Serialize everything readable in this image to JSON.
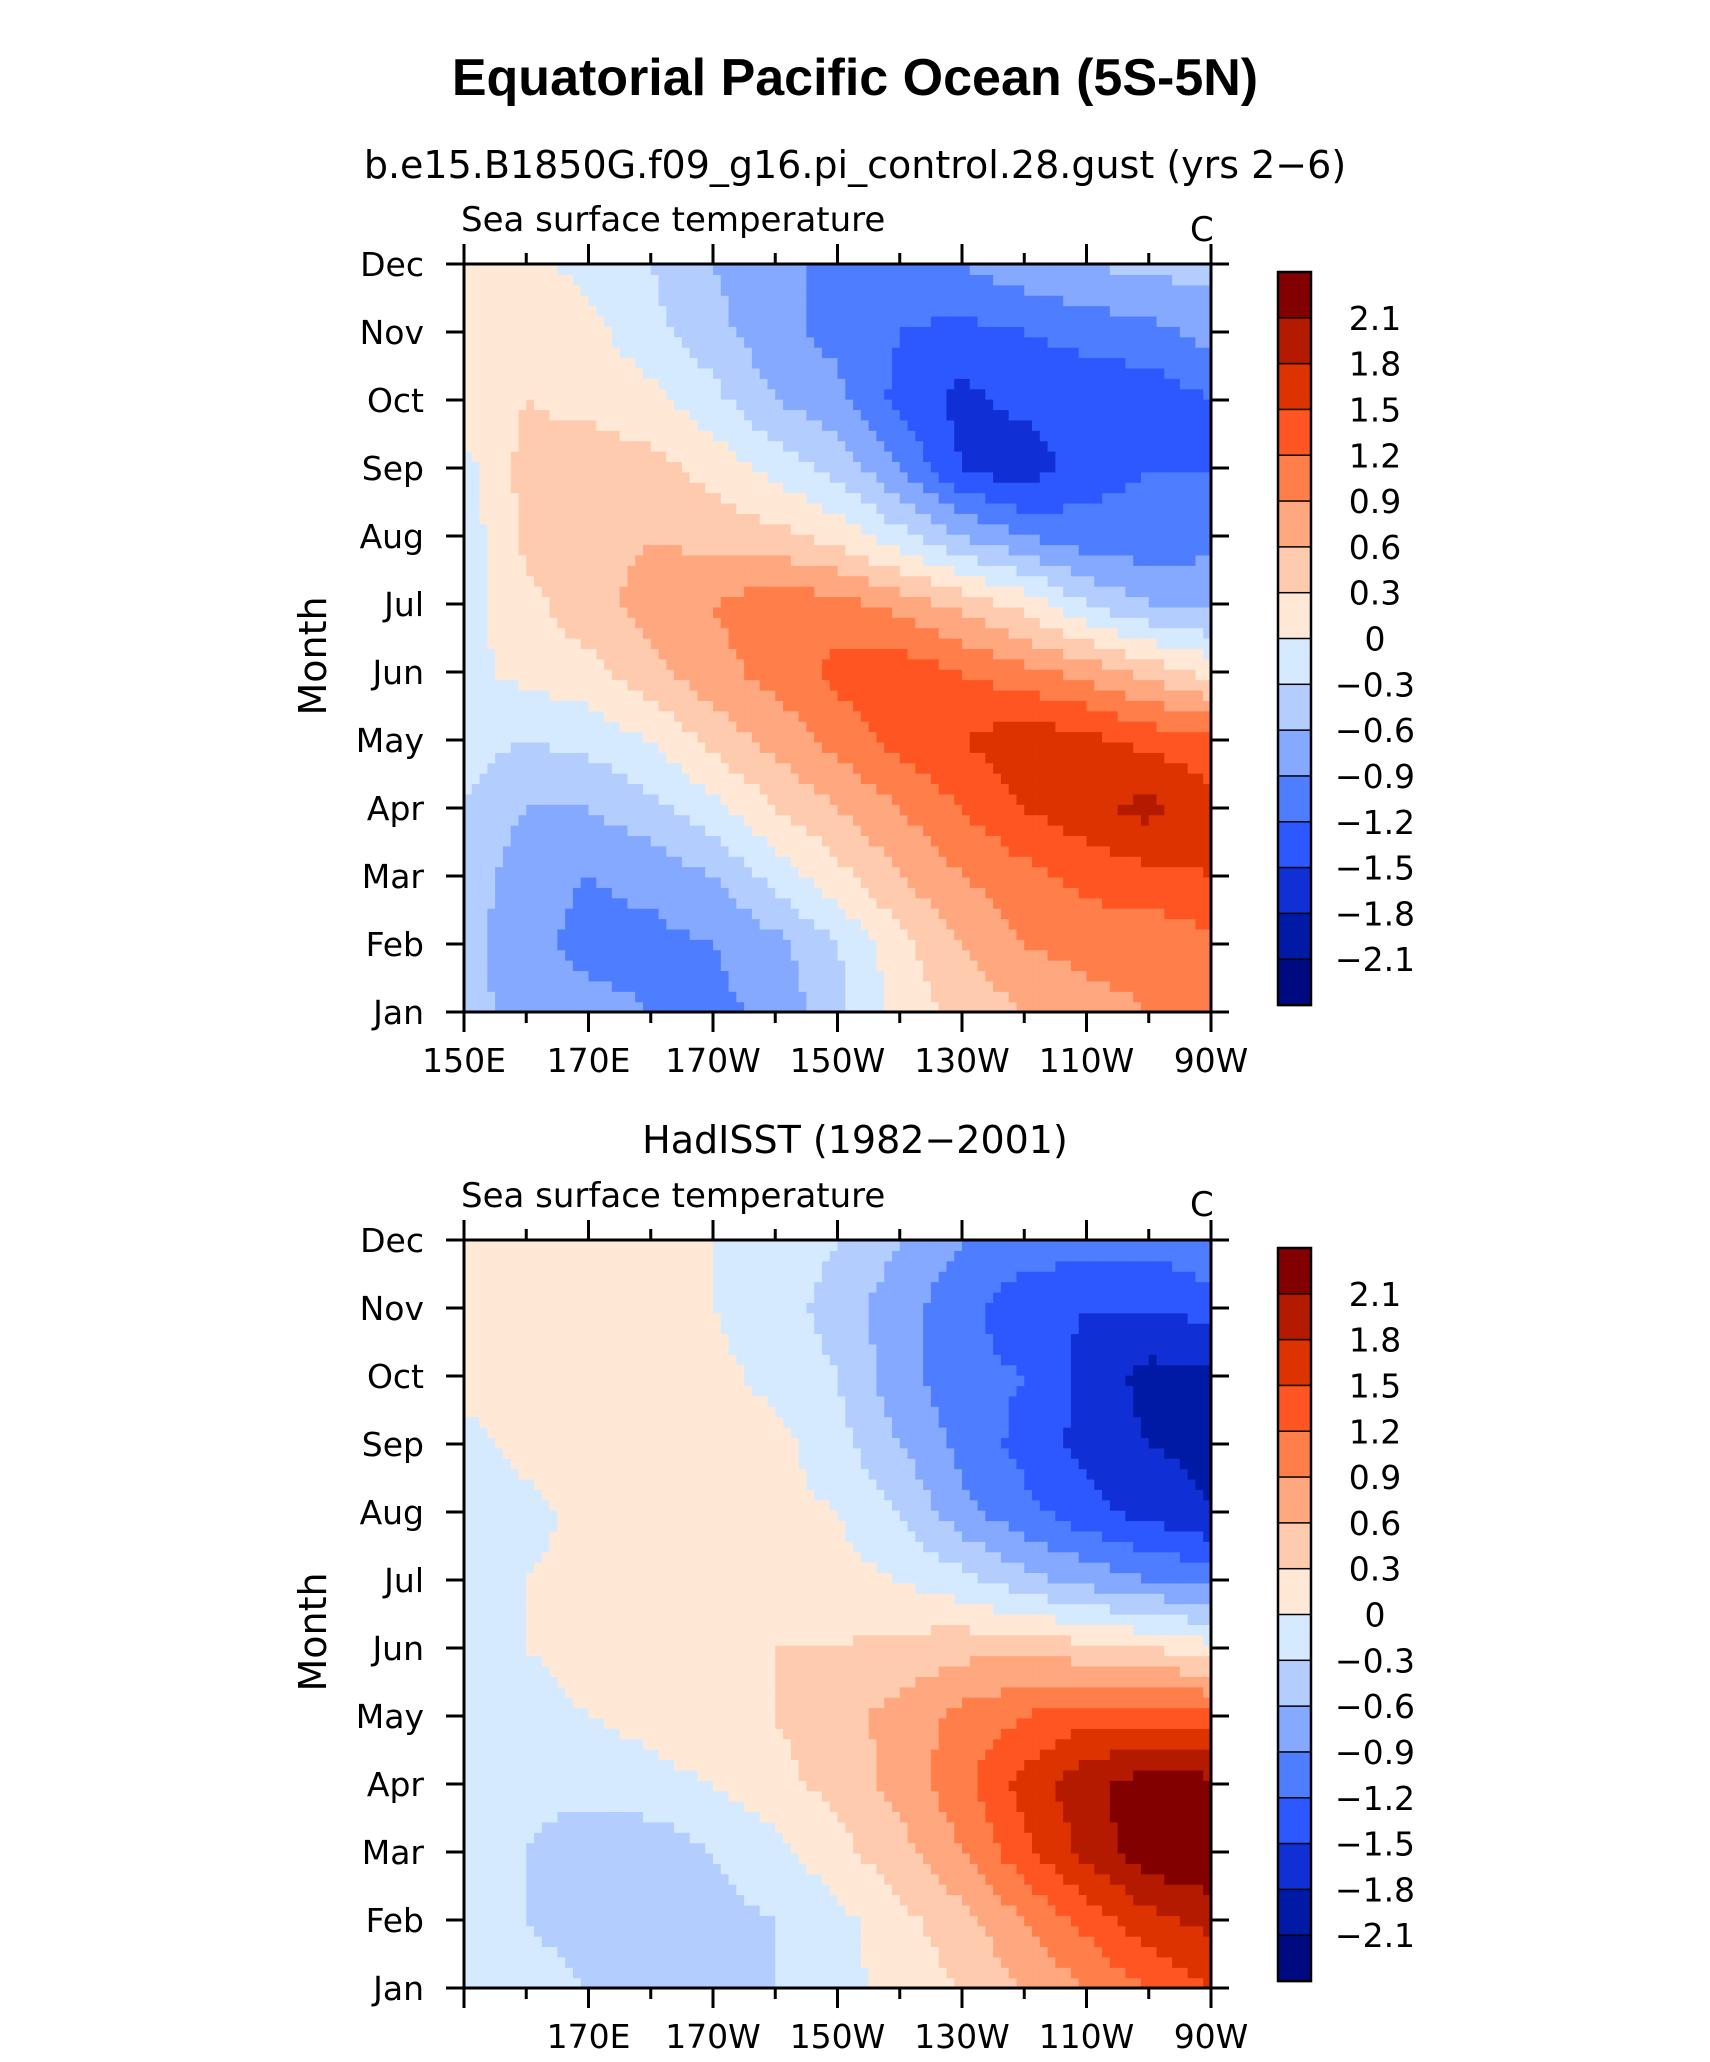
{
  "figure_title": "Equatorial Pacific Ocean (5S-5N)",
  "colorbar_labels": [
    "2.1",
    "1.8",
    "1.5",
    "1.2",
    "0.9",
    "0.6",
    "0.3",
    "0",
    "−0.3",
    "−0.6",
    "−0.9",
    "−1.2",
    "−1.5",
    "−1.8",
    "−2.1"
  ],
  "colorbar_colors": [
    "#820000",
    "#b41a00",
    "#dc3300",
    "#ff5522",
    "#ff7e4a",
    "#ffa77e",
    "#ffcbae",
    "#ffe9d6",
    "#d6eaff",
    "#b4cdff",
    "#84a9ff",
    "#4f7dff",
    "#2d58ff",
    "#1030d6",
    "#001aa6",
    "#000a80"
  ],
  "chart_data": [
    {
      "type": "heatmap",
      "title": "b.e15.B1850G.f09_g16.pi_control.28.gust (yrs 2−6)",
      "left_label": "Sea surface temperature",
      "right_label": "C",
      "ylabel": "Month",
      "xlabel": "",
      "x_range": [
        150,
        270
      ],
      "x_ticks": [
        150,
        170,
        190,
        210,
        230,
        250,
        270
      ],
      "x_tick_labels": [
        "150E",
        "170E",
        "170W",
        "150W",
        "130W",
        "110W",
        "90W"
      ],
      "y_tick_labels": [
        "Jan",
        "Feb",
        "Mar",
        "Apr",
        "May",
        "Jun",
        "Jul",
        "Aug",
        "Sep",
        "Oct",
        "Nov",
        "Dec"
      ],
      "levels": [
        -2.1,
        -1.8,
        -1.5,
        -1.2,
        -0.9,
        -0.6,
        -0.3,
        0,
        0.3,
        0.6,
        0.9,
        1.2,
        1.5,
        1.8,
        2.1
      ],
      "lon": [
        150,
        160,
        170,
        180,
        190,
        200,
        210,
        220,
        230,
        240,
        250,
        260,
        270
      ],
      "z": [
        [
          -0.5,
          -0.7,
          -0.8,
          -0.9,
          -1.0,
          -0.8,
          -0.4,
          0.1,
          0.4,
          0.6,
          0.8,
          0.9,
          0.9
        ],
        [
          -0.5,
          -0.8,
          -1.0,
          -1.0,
          -0.9,
          -0.7,
          -0.3,
          0.2,
          0.6,
          0.9,
          1.0,
          1.0,
          1.1
        ],
        [
          -0.4,
          -0.8,
          -0.9,
          -0.8,
          -0.6,
          -0.2,
          0.2,
          0.6,
          0.9,
          1.1,
          1.3,
          1.4,
          1.5
        ],
        [
          -0.3,
          -0.6,
          -0.6,
          -0.4,
          -0.1,
          0.3,
          0.6,
          0.9,
          1.2,
          1.5,
          1.7,
          1.9,
          1.6
        ],
        [
          -0.2,
          -0.3,
          -0.2,
          0.0,
          0.4,
          0.7,
          1.0,
          1.3,
          1.5,
          1.7,
          1.6,
          1.4,
          1.3
        ],
        [
          -0.1,
          0.1,
          0.2,
          0.5,
          0.8,
          1.0,
          1.3,
          1.4,
          1.2,
          1.0,
          0.8,
          0.5,
          0.2
        ],
        [
          -0.1,
          0.2,
          0.5,
          0.7,
          0.9,
          1.1,
          1.0,
          0.8,
          0.5,
          0.2,
          -0.3,
          -0.6,
          -0.7
        ],
        [
          -0.2,
          0.4,
          0.5,
          0.6,
          0.5,
          0.4,
          0.2,
          -0.2,
          -0.6,
          -0.9,
          -1.1,
          -1.1,
          -1.0
        ],
        [
          -0.1,
          0.4,
          0.5,
          0.4,
          0.2,
          -0.1,
          -0.4,
          -0.9,
          -1.5,
          -1.7,
          -1.3,
          -1.2,
          -1.2
        ],
        [
          0.2,
          0.3,
          0.2,
          0.1,
          -0.2,
          -0.6,
          -0.8,
          -1.3,
          -1.6,
          -1.4,
          -1.4,
          -1.4,
          -1.2
        ],
        [
          0.3,
          0.2,
          0.1,
          -0.2,
          -0.5,
          -0.8,
          -1.0,
          -1.2,
          -1.3,
          -1.2,
          -1.1,
          -1.0,
          -0.8
        ],
        [
          0.2,
          0.1,
          -0.1,
          -0.3,
          -0.6,
          -0.8,
          -1.0,
          -1.0,
          -0.9,
          -0.7,
          -0.6,
          -0.5,
          -0.5
        ]
      ]
    },
    {
      "type": "heatmap",
      "title": "HadISST (1982−2001)",
      "left_label": "Sea surface temperature",
      "right_label": "C",
      "ylabel": "Month",
      "xlabel": "",
      "x_range": [
        150,
        270
      ],
      "x_ticks": [
        170,
        190,
        210,
        230,
        250,
        270
      ],
      "x_tick_labels": [
        "170E",
        "170W",
        "150W",
        "130W",
        "110W",
        "90W"
      ],
      "y_tick_labels": [
        "Jan",
        "Feb",
        "Mar",
        "Apr",
        "May",
        "Jun",
        "Jul",
        "Aug",
        "Sep",
        "Oct",
        "Nov",
        "Dec"
      ],
      "levels": [
        -2.1,
        -1.8,
        -1.5,
        -1.2,
        -0.9,
        -0.6,
        -0.3,
        0,
        0.3,
        0.6,
        0.9,
        1.2,
        1.5,
        1.8,
        2.1
      ],
      "lon": [
        150,
        160,
        170,
        180,
        190,
        200,
        210,
        220,
        230,
        240,
        250,
        260,
        270
      ],
      "z": [
        [
          -0.1,
          -0.2,
          -0.3,
          -0.4,
          -0.4,
          -0.3,
          -0.1,
          0.1,
          0.3,
          0.6,
          0.9,
          1.2,
          1.5
        ],
        [
          -0.2,
          -0.3,
          -0.4,
          -0.5,
          -0.4,
          -0.3,
          -0.1,
          0.2,
          0.5,
          0.9,
          1.3,
          1.7,
          1.9
        ],
        [
          -0.2,
          -0.3,
          -0.5,
          -0.5,
          -0.3,
          -0.1,
          0.2,
          0.5,
          0.9,
          1.4,
          1.9,
          2.3,
          2.4
        ],
        [
          -0.2,
          -0.2,
          -0.2,
          -0.1,
          0.0,
          0.2,
          0.4,
          0.7,
          1.1,
          1.6,
          2.0,
          2.3,
          2.2
        ],
        [
          -0.1,
          -0.1,
          0.0,
          0.1,
          0.2,
          0.3,
          0.5,
          0.7,
          1.0,
          1.2,
          1.4,
          1.4,
          1.3
        ],
        [
          -0.1,
          0.0,
          0.1,
          0.1,
          0.2,
          0.3,
          0.3,
          0.4,
          0.5,
          0.5,
          0.4,
          0.3,
          0.1
        ],
        [
          -0.1,
          0.0,
          0.1,
          0.1,
          0.1,
          0.1,
          0.1,
          0.0,
          -0.2,
          -0.5,
          -0.7,
          -0.9,
          -1.0
        ],
        [
          -0.2,
          -0.1,
          0.1,
          0.1,
          0.1,
          0.1,
          0.0,
          -0.3,
          -0.8,
          -1.1,
          -1.4,
          -1.6,
          -1.8
        ],
        [
          -0.1,
          0.1,
          0.2,
          0.3,
          0.2,
          0.1,
          -0.2,
          -0.6,
          -1.0,
          -1.3,
          -1.6,
          -1.8,
          -1.9
        ],
        [
          0.1,
          0.2,
          0.2,
          0.2,
          0.1,
          -0.1,
          -0.3,
          -0.8,
          -1.1,
          -1.2,
          -1.6,
          -1.9,
          -1.9
        ],
        [
          0.1,
          0.1,
          0.1,
          0.1,
          0.0,
          -0.2,
          -0.4,
          -0.8,
          -1.1,
          -1.4,
          -1.5,
          -1.5,
          -1.4
        ],
        [
          0.1,
          0.1,
          0.1,
          0.1,
          0.0,
          -0.1,
          -0.3,
          -0.6,
          -0.9,
          -1.0,
          -1.1,
          -1.1,
          -0.9
        ]
      ]
    }
  ]
}
